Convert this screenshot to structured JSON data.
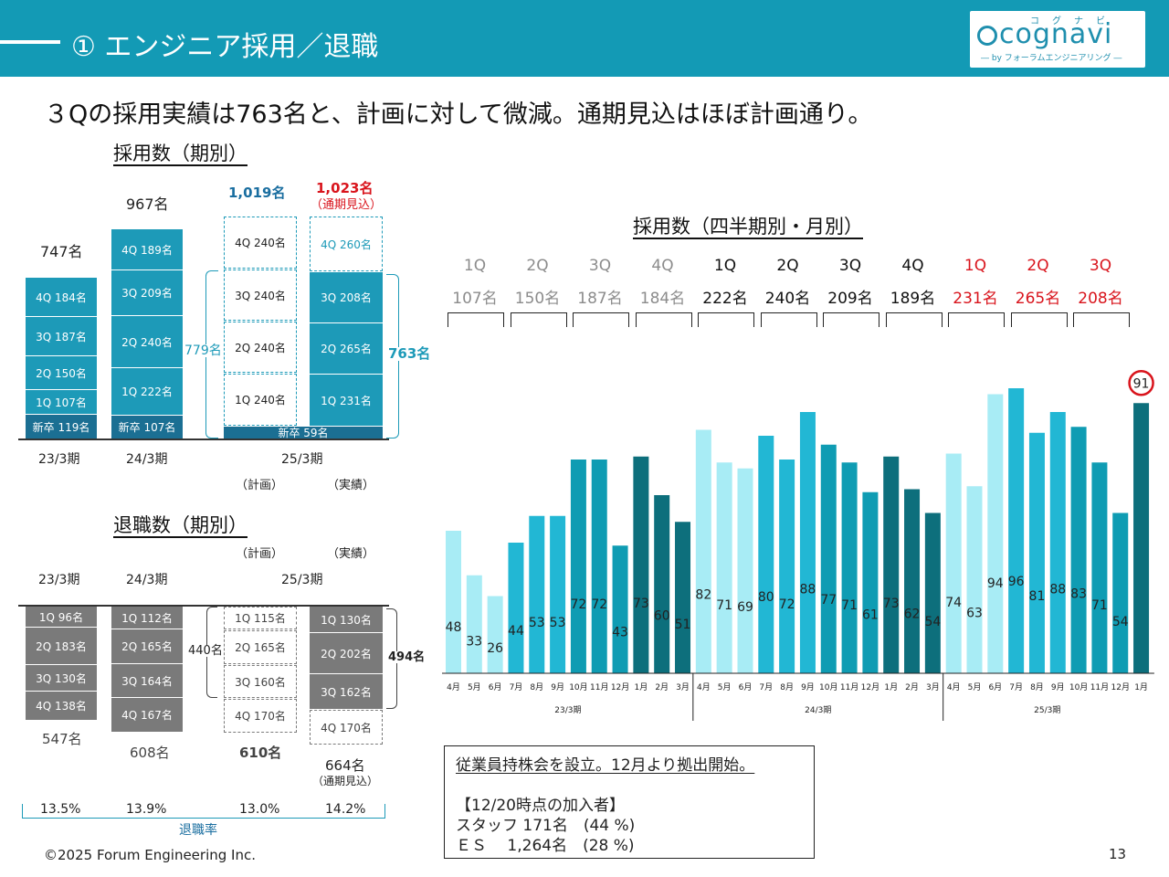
{
  "header": {
    "title": "① エンジニア採用／退職",
    "logo_ruby": "コグナビ",
    "logo_word": "cognavi",
    "logo_sub": "― by フォーラムエンジニアリング ―"
  },
  "headline": "３Qの採用実績は763名と、計画に対して微減。通期見込はほぼ計画通り。",
  "hiring_annual": {
    "title": "採用数（期別）",
    "col_23": {
      "total": "747名",
      "year": "23/3期",
      "segments": [
        "4Q 184名",
        "3Q 187名",
        "2Q 150名",
        "1Q 107名",
        "新卒 119名"
      ]
    },
    "col_24": {
      "total": "967名",
      "year": "24/3期",
      "segments": [
        "4Q 189名",
        "3Q 209名",
        "2Q 240名",
        "1Q 222名",
        "新卒 107名"
      ]
    },
    "col_25": {
      "year": "25/3期",
      "plan_total": "1,019名",
      "plan_label": "（計画）",
      "plan_segments": [
        "4Q 240名",
        "3Q 240名",
        "2Q 240名",
        "1Q 240名"
      ],
      "plan_brace": "779名",
      "actual_total": "1,023名",
      "actual_note": "（通期見込）",
      "actual_label": "（実績）",
      "actual_segments": [
        "4Q 260名",
        "3Q 208名",
        "2Q 265名",
        "1Q 231名"
      ],
      "actual_brace": "763名",
      "new_grad": "新卒 59名"
    }
  },
  "attrition_annual": {
    "title": "退職数（期別）",
    "plan_label": "（計画）",
    "actual_label": "（実績）",
    "col_23": {
      "year": "23/3期",
      "total": "547名",
      "segments": [
        "1Q 96名",
        "2Q 183名",
        "3Q 130名",
        "4Q 138名"
      ],
      "rate": "13.5%"
    },
    "col_24": {
      "year": "24/3期",
      "total": "608名",
      "segments": [
        "1Q 112名",
        "2Q 165名",
        "3Q 164名",
        "4Q 167名"
      ],
      "rate": "13.9%"
    },
    "col_25": {
      "year": "25/3期",
      "plan_segments": [
        "1Q 115名",
        "2Q 165名",
        "3Q 160名",
        "4Q 170名"
      ],
      "plan_brace": "440名",
      "plan_total": "610名",
      "plan_rate": "13.0%",
      "actual_segments": [
        "1Q 130名",
        "2Q 202名",
        "3Q 162名",
        "4Q 170名"
      ],
      "actual_brace": "494名",
      "actual_total": "664名",
      "actual_note": "（通期見込）",
      "actual_rate": "14.2%"
    },
    "rate_label": "退職率"
  },
  "quarterly": {
    "title": "採用数（四半期別・月別）",
    "quarters": [
      {
        "q": "1Q",
        "v": "107名"
      },
      {
        "q": "2Q",
        "v": "150名"
      },
      {
        "q": "3Q",
        "v": "187名"
      },
      {
        "q": "4Q",
        "v": "184名"
      },
      {
        "q": "1Q",
        "v": "222名"
      },
      {
        "q": "2Q",
        "v": "240名"
      },
      {
        "q": "3Q",
        "v": "209名"
      },
      {
        "q": "4Q",
        "v": "189名"
      },
      {
        "q": "1Q",
        "v": "231名"
      },
      {
        "q": "2Q",
        "v": "265名"
      },
      {
        "q": "3Q",
        "v": "208名"
      }
    ]
  },
  "colors": {
    "header": "#139ab5",
    "brand": "#1d9ab8",
    "new_grad": "#1b6f93",
    "q_light": "#a8ecf5",
    "q_mid": "#22b7d4",
    "q_dark": "#0f9cb3",
    "q_darkest": "#0d6f7c",
    "red": "#d9141c",
    "gray": "#7a7a7a",
    "q_label_past": "#8c8c8c"
  },
  "chart_data": {
    "type": "bar",
    "title": "採用数（四半期別・月別）",
    "categories": [
      "4月",
      "5月",
      "6月",
      "7月",
      "8月",
      "9月",
      "10月",
      "11月",
      "12月",
      "1月",
      "2月",
      "3月",
      "4月",
      "5月",
      "6月",
      "7月",
      "8月",
      "9月",
      "10月",
      "11月",
      "12月",
      "1月",
      "2月",
      "3月",
      "4月",
      "5月",
      "6月",
      "7月",
      "8月",
      "9月",
      "10月",
      "11月",
      "12月",
      "1月"
    ],
    "groups": [
      "23/3期",
      "24/3期",
      "25/3期"
    ],
    "group_sizes": [
      12,
      12,
      10
    ],
    "values": [
      48,
      33,
      26,
      44,
      53,
      53,
      72,
      72,
      43,
      73,
      60,
      51,
      82,
      71,
      69,
      80,
      72,
      88,
      77,
      71,
      61,
      73,
      62,
      54,
      74,
      63,
      94,
      96,
      81,
      88,
      83,
      71,
      54,
      91
    ],
    "highlight_last": "91",
    "xlabel": "",
    "ylabel": "",
    "ylim": [
      0,
      100
    ]
  },
  "note": {
    "line1": "従業員持株会を設立。12月より拠出開始。",
    "line2": "【12/20時点の加入者】",
    "line3": "スタッフ 171名　(44 %)",
    "line4": " ＥＳ　   1,264名　(28 %)"
  },
  "footer": "©2025 Forum Engineering Inc.",
  "page_number": "13"
}
